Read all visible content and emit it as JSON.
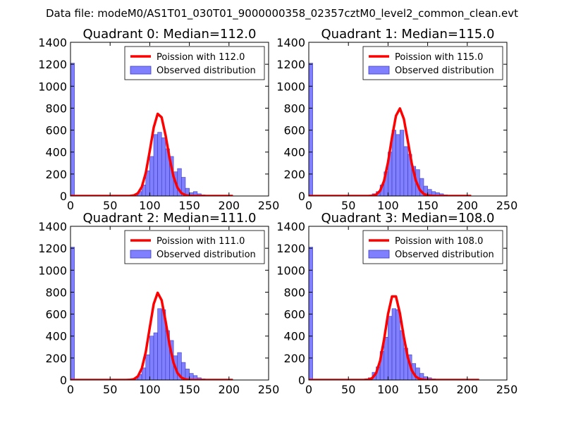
{
  "figure": {
    "suptitle": "Data file: modeM0/AS1T01_030T01_9000000358_02357cztM0_level2_common_clean.evt"
  },
  "colors": {
    "histogram_fill": "#8080ff",
    "histogram_edge": "#3a3ac0",
    "poisson_line": "#ff0000",
    "axes": "#000000"
  },
  "chart_data": [
    {
      "type": "bar",
      "title": "Quadrant 0: Median=112.0",
      "xlim": [
        0,
        250
      ],
      "ylim": [
        0,
        1400
      ],
      "xticks": [
        0,
        50,
        100,
        150,
        200,
        250
      ],
      "yticks": [
        0,
        200,
        400,
        600,
        800,
        1000,
        1200,
        1400
      ],
      "legend_position": "top-right",
      "bin_width": 5,
      "histogram": {
        "name": "Observed distribution",
        "bins": [
          {
            "x": 0,
            "y": 1210
          },
          {
            "x": 80,
            "y": 10
          },
          {
            "x": 85,
            "y": 40
          },
          {
            "x": 90,
            "y": 100
          },
          {
            "x": 95,
            "y": 230
          },
          {
            "x": 100,
            "y": 360
          },
          {
            "x": 105,
            "y": 560
          },
          {
            "x": 110,
            "y": 580
          },
          {
            "x": 115,
            "y": 530
          },
          {
            "x": 120,
            "y": 430
          },
          {
            "x": 125,
            "y": 360
          },
          {
            "x": 130,
            "y": 220
          },
          {
            "x": 135,
            "y": 250
          },
          {
            "x": 140,
            "y": 170
          },
          {
            "x": 145,
            "y": 70
          },
          {
            "x": 150,
            "y": 30
          },
          {
            "x": 155,
            "y": 40
          },
          {
            "x": 160,
            "y": 20
          },
          {
            "x": 165,
            "y": 10
          }
        ]
      },
      "poisson": {
        "name": "Poission with 112.0",
        "mean": 112.0,
        "x_range": [
          0,
          205
        ]
      }
    },
    {
      "type": "bar",
      "title": "Quadrant 1: Median=115.0",
      "xlim": [
        0,
        250
      ],
      "ylim": [
        0,
        1400
      ],
      "xticks": [
        0,
        50,
        100,
        150,
        200,
        250
      ],
      "yticks": [
        0,
        200,
        400,
        600,
        800,
        1000,
        1200,
        1400
      ],
      "legend_position": "top-right",
      "bin_width": 5,
      "histogram": {
        "name": "Observed distribution",
        "bins": [
          {
            "x": 0,
            "y": 1210
          },
          {
            "x": 80,
            "y": 20
          },
          {
            "x": 85,
            "y": 40
          },
          {
            "x": 90,
            "y": 100
          },
          {
            "x": 95,
            "y": 220
          },
          {
            "x": 100,
            "y": 400
          },
          {
            "x": 105,
            "y": 600
          },
          {
            "x": 110,
            "y": 560
          },
          {
            "x": 115,
            "y": 600
          },
          {
            "x": 120,
            "y": 450
          },
          {
            "x": 125,
            "y": 380
          },
          {
            "x": 130,
            "y": 270
          },
          {
            "x": 135,
            "y": 240
          },
          {
            "x": 140,
            "y": 160
          },
          {
            "x": 145,
            "y": 90
          },
          {
            "x": 150,
            "y": 60
          },
          {
            "x": 155,
            "y": 40
          },
          {
            "x": 160,
            "y": 30
          },
          {
            "x": 165,
            "y": 20
          },
          {
            "x": 170,
            "y": 10
          }
        ]
      },
      "poisson": {
        "name": "Poission with 115.0",
        "mean": 115.0,
        "x_range": [
          0,
          205
        ]
      }
    },
    {
      "type": "bar",
      "title": "Quadrant 2: Median=111.0",
      "xlim": [
        0,
        250
      ],
      "ylim": [
        0,
        1400
      ],
      "xticks": [
        0,
        50,
        100,
        150,
        200,
        250
      ],
      "yticks": [
        0,
        200,
        400,
        600,
        800,
        1000,
        1200,
        1400
      ],
      "legend_position": "top-right",
      "bin_width": 5,
      "histogram": {
        "name": "Observed distribution",
        "bins": [
          {
            "x": 0,
            "y": 1210
          },
          {
            "x": 80,
            "y": 20
          },
          {
            "x": 85,
            "y": 50
          },
          {
            "x": 90,
            "y": 110
          },
          {
            "x": 95,
            "y": 230
          },
          {
            "x": 100,
            "y": 400
          },
          {
            "x": 105,
            "y": 430
          },
          {
            "x": 110,
            "y": 650
          },
          {
            "x": 115,
            "y": 640
          },
          {
            "x": 120,
            "y": 450
          },
          {
            "x": 125,
            "y": 360
          },
          {
            "x": 130,
            "y": 220
          },
          {
            "x": 135,
            "y": 250
          },
          {
            "x": 140,
            "y": 160
          },
          {
            "x": 145,
            "y": 100
          },
          {
            "x": 150,
            "y": 60
          },
          {
            "x": 155,
            "y": 40
          },
          {
            "x": 160,
            "y": 20
          },
          {
            "x": 165,
            "y": 10
          }
        ]
      },
      "poisson": {
        "name": "Poission with 111.0",
        "mean": 111.0,
        "x_range": [
          0,
          205
        ]
      }
    },
    {
      "type": "bar",
      "title": "Quadrant 3: Median=108.0",
      "xlim": [
        0,
        250
      ],
      "ylim": [
        0,
        1400
      ],
      "xticks": [
        0,
        50,
        100,
        150,
        200,
        250
      ],
      "yticks": [
        0,
        200,
        400,
        600,
        800,
        1000,
        1200,
        1400
      ],
      "legend_position": "top-right",
      "bin_width": 5,
      "histogram": {
        "name": "Observed distribution",
        "bins": [
          {
            "x": 0,
            "y": 1210
          },
          {
            "x": 75,
            "y": 20
          },
          {
            "x": 80,
            "y": 70
          },
          {
            "x": 85,
            "y": 120
          },
          {
            "x": 90,
            "y": 260
          },
          {
            "x": 95,
            "y": 390
          },
          {
            "x": 100,
            "y": 580
          },
          {
            "x": 105,
            "y": 650
          },
          {
            "x": 110,
            "y": 640
          },
          {
            "x": 115,
            "y": 450
          },
          {
            "x": 120,
            "y": 290
          },
          {
            "x": 125,
            "y": 230
          },
          {
            "x": 130,
            "y": 150
          },
          {
            "x": 135,
            "y": 110
          },
          {
            "x": 140,
            "y": 60
          },
          {
            "x": 145,
            "y": 30
          },
          {
            "x": 150,
            "y": 20
          },
          {
            "x": 155,
            "y": 10
          }
        ]
      },
      "poisson": {
        "name": "Poission with 108.0",
        "mean": 108.0,
        "x_range": [
          0,
          215
        ]
      }
    }
  ]
}
